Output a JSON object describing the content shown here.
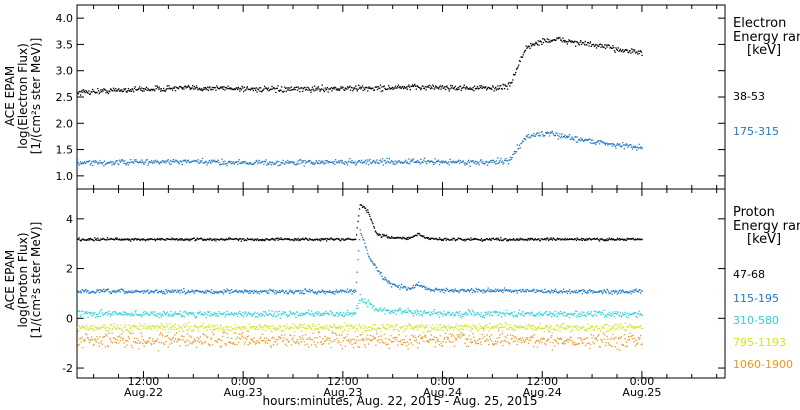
{
  "chart_data": {
    "x_axis": {
      "title": "hours:minutes, Aug. 22, 2015 - Aug. 25, 2015",
      "range_hours": [
        4,
        82
      ],
      "ticks": [
        {
          "hour": 12,
          "time": "12:00",
          "date": "Aug.22"
        },
        {
          "hour": 24,
          "time": "0:00",
          "date": "Aug.23"
        },
        {
          "hour": 36,
          "time": "12:00",
          "date": "Aug.23"
        },
        {
          "hour": 48,
          "time": "0:00",
          "date": "Aug.24"
        },
        {
          "hour": 60,
          "time": "12:00",
          "date": "Aug.24"
        },
        {
          "hour": 72,
          "time": "0:00",
          "date": "Aug.25"
        }
      ]
    },
    "panels": [
      {
        "type": "scatter",
        "ylabel": [
          "ACE EPAM",
          "log(Electron Flux)",
          "[1/(cm²s ster MeV)]"
        ],
        "ylim": [
          0.75,
          4.25
        ],
        "yticks": [
          1.0,
          1.5,
          2.0,
          2.5,
          3.0,
          3.5,
          4.0
        ],
        "ytick_labels": [
          "1.0",
          "1.5",
          "2.0",
          "2.5",
          "3.0",
          "3.5",
          "4.0"
        ],
        "legend_title": [
          "Electron",
          "Energy ran",
          "[keV]"
        ],
        "series": [
          {
            "name": "38-53",
            "color": "#000000",
            "x": [
              4,
              10,
              16,
              22,
              28,
              34,
              40,
              46,
              52,
              54,
              56,
              57,
              58,
              60,
              62,
              64,
              66,
              68,
              70,
              72
            ],
            "y": [
              2.6,
              2.65,
              2.68,
              2.68,
              2.65,
              2.67,
              2.68,
              2.7,
              2.68,
              2.68,
              2.72,
              3.1,
              3.45,
              3.58,
              3.6,
              3.55,
              3.5,
              3.45,
              3.4,
              3.35
            ],
            "scatter": 0.05
          },
          {
            "name": "175-315",
            "color": "#1e78c8",
            "x": [
              4,
              10,
              16,
              22,
              28,
              34,
              40,
              46,
              52,
              54,
              56,
              57,
              58,
              60,
              62,
              64,
              66,
              68,
              70,
              72
            ],
            "y": [
              1.25,
              1.27,
              1.28,
              1.27,
              1.26,
              1.27,
              1.28,
              1.28,
              1.27,
              1.27,
              1.3,
              1.55,
              1.75,
              1.82,
              1.78,
              1.72,
              1.67,
              1.62,
              1.58,
              1.55
            ],
            "scatter": 0.05
          }
        ]
      },
      {
        "type": "scatter",
        "ylabel": [
          "ACE EPAM",
          "log(Proton Flux)",
          "[1/(cm²s ster MeV)]"
        ],
        "ylim": [
          -2.4,
          5.2
        ],
        "yticks": [
          -2,
          0,
          2,
          4
        ],
        "ytick_labels": [
          "-2",
          "0",
          "2",
          "4"
        ],
        "legend_title": [
          "Proton",
          "Energy ran",
          "[keV]"
        ],
        "series": [
          {
            "name": "47-68",
            "color": "#000000",
            "x": [
              4,
              10,
              16,
              20,
              22,
              28,
              35,
              37.5,
              38,
              39,
              40,
              42,
              44,
              45,
              46,
              48,
              54,
              60,
              66,
              72
            ],
            "y": [
              3.2,
              3.2,
              3.2,
              3.2,
              3.2,
              3.2,
              3.2,
              3.2,
              4.6,
              4.3,
              3.4,
              3.25,
              3.25,
              3.4,
              3.25,
              3.2,
              3.2,
              3.2,
              3.2,
              3.2
            ],
            "scatter": 0.05
          },
          {
            "name": "115-195",
            "color": "#1e78c8",
            "x": [
              4,
              10,
              16,
              22,
              28,
              34,
              37.5,
              38,
              39,
              40,
              41,
              42,
              44,
              45,
              46,
              48,
              54,
              60,
              66,
              72
            ],
            "y": [
              1.1,
              1.1,
              1.1,
              1.1,
              1.1,
              1.1,
              1.1,
              3.6,
              2.6,
              2.0,
              1.6,
              1.35,
              1.2,
              1.4,
              1.2,
              1.15,
              1.15,
              1.1,
              1.1,
              1.1
            ],
            "scatter": 0.08
          },
          {
            "name": "310-580",
            "color": "#2ad2d2",
            "x": [
              4,
              10,
              16,
              22,
              28,
              34,
              37.5,
              38,
              39,
              40,
              42,
              44,
              48,
              54,
              60,
              66,
              72
            ],
            "y": [
              0.2,
              0.2,
              0.2,
              0.2,
              0.2,
              0.2,
              0.2,
              0.9,
              0.6,
              0.4,
              0.3,
              0.25,
              0.2,
              0.2,
              0.2,
              0.2,
              0.2
            ],
            "scatter": 0.12
          },
          {
            "name": "795-1193",
            "color": "#d2e61e",
            "x": [
              4,
              16,
              28,
              40,
              52,
              64,
              72
            ],
            "y": [
              -0.35,
              -0.35,
              -0.35,
              -0.35,
              -0.35,
              -0.35,
              -0.35
            ],
            "scatter": 0.15
          },
          {
            "name": "1060-1900",
            "color": "#f0961e",
            "x": [
              4,
              16,
              28,
              40,
              52,
              64,
              72
            ],
            "y": [
              -0.85,
              -0.85,
              -0.85,
              -0.85,
              -0.85,
              -0.85,
              -0.85
            ],
            "scatter": 0.28
          }
        ]
      }
    ]
  }
}
